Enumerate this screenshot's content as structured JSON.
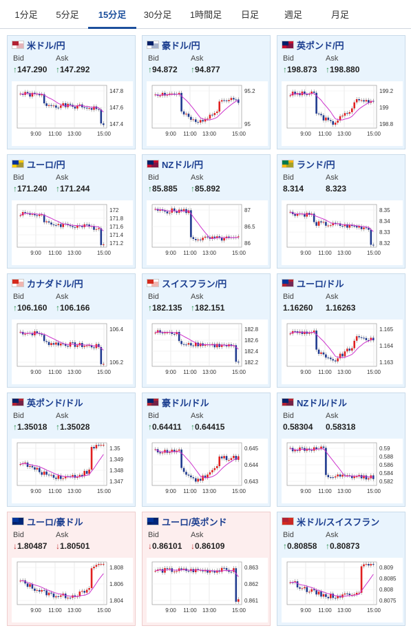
{
  "tabs": [
    {
      "label": "1分足"
    },
    {
      "label": "5分足"
    },
    {
      "label": "15分足",
      "active": true
    },
    {
      "label": "30分足"
    },
    {
      "label": "1時間足"
    },
    {
      "label": "日足"
    },
    {
      "label": "週足"
    },
    {
      "label": "月足"
    }
  ],
  "bid_label": "Bid",
  "ask_label": "Ask",
  "x_ticks": [
    "9:00",
    "11:00",
    "13:00",
    "15:00"
  ],
  "cards": [
    {
      "pair": "米ドル/円",
      "bid": "147.290",
      "ask": "147.292",
      "dir": "up",
      "flag": [
        "#b22234",
        "#ffffff"
      ],
      "yt": [
        "147.8",
        "147.6",
        "147.4"
      ],
      "seed": 1,
      "shape": "drop"
    },
    {
      "pair": "豪ドル/円",
      "bid": "94.872",
      "ask": "94.877",
      "dir": "up",
      "flag": [
        "#012169",
        "#ffffff"
      ],
      "yt": [
        "95.2",
        "95"
      ],
      "seed": 2,
      "shape": "dip"
    },
    {
      "pair": "英ポンド/円",
      "bid": "198.873",
      "ask": "198.880",
      "dir": "up",
      "flag": [
        "#012169",
        "#c8102e"
      ],
      "yt": [
        "199.2",
        "199",
        "198.8"
      ],
      "seed": 3,
      "shape": "dip"
    },
    {
      "pair": "ユーロ/円",
      "bid": "171.240",
      "ask": "171.244",
      "dir": "up",
      "flag": [
        "#003399",
        "#ffcc00"
      ],
      "yt": [
        "172",
        "171.8",
        "171.6",
        "171.4",
        "171.2"
      ],
      "seed": 4,
      "shape": "drop"
    },
    {
      "pair": "NZドル/円",
      "bid": "85.885",
      "ask": "85.892",
      "dir": "up",
      "flag": [
        "#012169",
        "#c8102e"
      ],
      "yt": [
        "87",
        "86.5",
        "86"
      ],
      "seed": 5,
      "shape": "step"
    },
    {
      "pair": "ランド/円",
      "bid": "8.314",
      "ask": "8.323",
      "dir": "none",
      "flag": [
        "#007a4d",
        "#ffb612"
      ],
      "yt": [
        "8.35",
        "8.34",
        "8.33",
        "8.32"
      ],
      "seed": 6,
      "shape": "drop"
    },
    {
      "pair": "カナダドル/円",
      "bid": "106.160",
      "ask": "106.166",
      "dir": "up",
      "flag": [
        "#d52b1e",
        "#ffffff"
      ],
      "yt": [
        "106.4",
        "106.2"
      ],
      "seed": 7,
      "shape": "drop"
    },
    {
      "pair": "スイスフラン/円",
      "bid": "182.135",
      "ask": "182.151",
      "dir": "up",
      "flag": [
        "#d52b1e",
        "#ffffff"
      ],
      "yt": [
        "182.8",
        "182.6",
        "182.4",
        "182.2"
      ],
      "seed": 8,
      "shape": "drop"
    },
    {
      "pair": "ユーロ/ドル",
      "bid": "1.16260",
      "ask": "1.16263",
      "dir": "none",
      "flag": [
        "#003399",
        "#b22234"
      ],
      "yt": [
        "1.165",
        "1.164",
        "1.163"
      ],
      "seed": 9,
      "shape": "dip"
    },
    {
      "pair": "英ポンド/ドル",
      "bid": "1.35018",
      "ask": "1.35028",
      "dir": "up",
      "flag": [
        "#012169",
        "#b22234"
      ],
      "yt": [
        "1.35",
        "1.349",
        "1.348",
        "1.347"
      ],
      "seed": 10,
      "shape": "rise"
    },
    {
      "pair": "豪ドル/ドル",
      "bid": "0.64411",
      "ask": "0.64415",
      "dir": "up",
      "flag": [
        "#012169",
        "#b22234"
      ],
      "yt": [
        "0.645",
        "0.644",
        "0.643"
      ],
      "seed": 11,
      "shape": "dip"
    },
    {
      "pair": "NZドル/ドル",
      "bid": "0.58304",
      "ask": "0.58318",
      "dir": "none",
      "flag": [
        "#012169",
        "#b22234"
      ],
      "yt": [
        "0.59",
        "0.588",
        "0.586",
        "0.584",
        "0.582"
      ],
      "seed": 12,
      "shape": "step"
    },
    {
      "pair": "ユーロ/豪ドル",
      "bid": "1.80487",
      "ask": "1.80501",
      "dir": "down",
      "flag": [
        "#003399",
        "#012169"
      ],
      "yt": [
        "1.808",
        "1.806",
        "1.804"
      ],
      "seed": 13,
      "shape": "rise",
      "pink": true
    },
    {
      "pair": "ユーロ/英ポンド",
      "bid": "0.86101",
      "ask": "0.86109",
      "dir": "down",
      "flag": [
        "#003399",
        "#012169"
      ],
      "yt": [
        "0.863",
        "0.862",
        "0.861"
      ],
      "seed": 14,
      "shape": "flatdrop",
      "pink": true
    },
    {
      "pair": "米ドル/スイスフラン",
      "bid": "0.80858",
      "ask": "0.80873",
      "dir": "up",
      "flag": [
        "#b22234",
        "#d52b1e"
      ],
      "yt": [
        "0.809",
        "0.8085",
        "0.808",
        "0.8075"
      ],
      "seed": 15,
      "shape": "rise"
    }
  ],
  "colors": {
    "up_candle": "#e02020",
    "down_candle": "#1f3a8f",
    "ma": "#cc33cc",
    "ma2": "#2aa8c8",
    "title": "#1a3d8f",
    "arrow_up": "#2a8f4a",
    "arrow_down": "#c03030"
  }
}
